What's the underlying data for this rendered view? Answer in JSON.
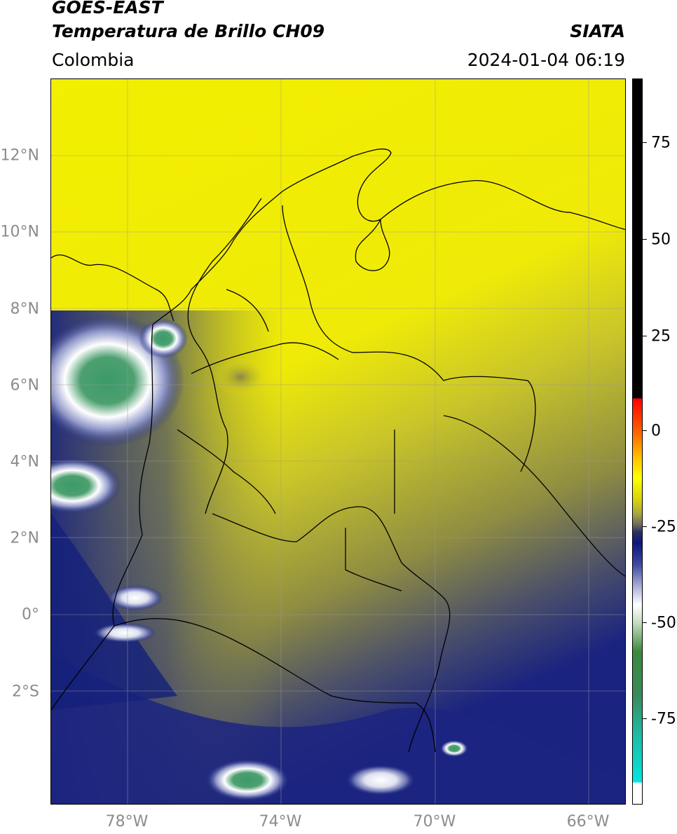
{
  "header": {
    "source": "GOES-EAST",
    "product": "Temperatura de Brillo CH09",
    "brand": "SIATA",
    "region": "Colombia",
    "timestamp": "2024-01-04 06:19"
  },
  "map": {
    "lon_range": [
      -80,
      -65
    ],
    "lat_range": [
      -5,
      14
    ],
    "lat_ticks": [
      {
        "value": 12,
        "label": "12°N"
      },
      {
        "value": 10,
        "label": "10°N"
      },
      {
        "value": 8,
        "label": "8°N"
      },
      {
        "value": 6,
        "label": "6°N"
      },
      {
        "value": 4,
        "label": "4°N"
      },
      {
        "value": 2,
        "label": "2°N"
      },
      {
        "value": 0,
        "label": "0°"
      },
      {
        "value": -2,
        "label": "2°S"
      }
    ],
    "lon_ticks": [
      {
        "value": -78,
        "label": "78°W"
      },
      {
        "value": -74,
        "label": "74°W"
      },
      {
        "value": -70,
        "label": "70°W"
      },
      {
        "value": -66,
        "label": "66°W"
      }
    ],
    "gridlines": true,
    "colors": {
      "warm_yellow": "#f5f000",
      "olive": "#8c8a3c",
      "dark_blue": "#14207a",
      "cold_white": "#ffffff",
      "cold_green": "#3c8c4a",
      "border": "#000000"
    }
  },
  "colorbar": {
    "range": [
      -95,
      90
    ],
    "units": "",
    "ticks": [
      {
        "value": 75,
        "label": "75"
      },
      {
        "value": 50,
        "label": "50"
      },
      {
        "value": 25,
        "label": "25"
      },
      {
        "value": 0,
        "label": "0"
      },
      {
        "value": -25,
        "label": "-25"
      },
      {
        "value": -50,
        "label": "-50"
      },
      {
        "value": -75,
        "label": "-75"
      }
    ]
  }
}
